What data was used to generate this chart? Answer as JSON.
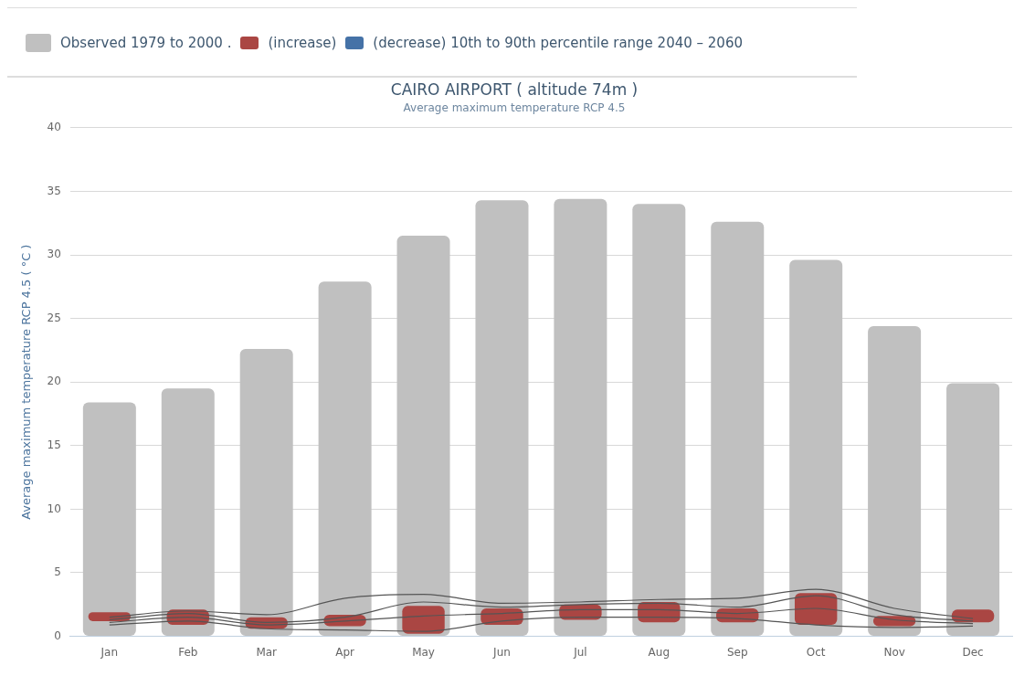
{
  "chart_data": {
    "type": "bar",
    "title": "CAIRO AIRPORT ( altitude 74m )",
    "subtitle": "Average maximum temperature RCP 4.5",
    "ylabel": "Average maximum temperature RCP 4.5 ( °C )",
    "categories": [
      "Jan",
      "Feb",
      "Mar",
      "Apr",
      "May",
      "Jun",
      "Jul",
      "Aug",
      "Sep",
      "Oct",
      "Nov",
      "Dec"
    ],
    "series": [
      {
        "name": "Observed 1979 to 2000 .",
        "color": "#c0c0c0",
        "values": [
          18.4,
          19.5,
          22.6,
          27.9,
          31.5,
          34.3,
          34.4,
          34.0,
          32.6,
          29.6,
          24.4,
          19.9
        ]
      },
      {
        "name": "(increase)",
        "color": "#aa4643",
        "base": [
          1.2,
          0.9,
          0.6,
          0.8,
          0.2,
          0.9,
          1.3,
          1.1,
          1.1,
          0.9,
          0.8,
          1.1
        ],
        "values": [
          0.7,
          1.2,
          0.9,
          0.9,
          2.2,
          1.3,
          1.2,
          1.6,
          1.1,
          2.5,
          0.8,
          1.0
        ]
      },
      {
        "name": "(decrease) 10th to 90th percentile range 2040 – 2060",
        "color": "#4572a7",
        "values": [
          null,
          null,
          null,
          null,
          null,
          null,
          null,
          null,
          null,
          null,
          null,
          null
        ]
      },
      {
        "color": "#555555",
        "type": "line",
        "values": [
          1.5,
          2.0,
          1.7,
          3.0,
          3.3,
          2.6,
          2.7,
          2.9,
          3.0,
          3.7,
          2.2,
          1.4
        ]
      },
      {
        "color": "#555555",
        "type": "line",
        "values": [
          1.3,
          1.8,
          1.1,
          1.5,
          2.7,
          2.3,
          2.5,
          2.6,
          2.3,
          3.2,
          1.7,
          1.2
        ]
      },
      {
        "color": "#555555",
        "type": "line",
        "values": [
          1.1,
          1.5,
          0.9,
          1.2,
          1.6,
          1.8,
          2.1,
          2.1,
          1.8,
          2.2,
          1.3,
          1.0
        ]
      },
      {
        "color": "#555555",
        "type": "line",
        "values": [
          0.9,
          1.2,
          0.6,
          0.5,
          0.4,
          1.2,
          1.5,
          1.5,
          1.4,
          0.9,
          0.7,
          0.8
        ]
      }
    ],
    "ylim": [
      0,
      40
    ],
    "yticks": [
      0,
      5,
      10,
      15,
      20,
      25,
      30,
      35,
      40
    ],
    "grid": "y",
    "legend": "top",
    "marker": "none",
    "line_style": "solid"
  }
}
